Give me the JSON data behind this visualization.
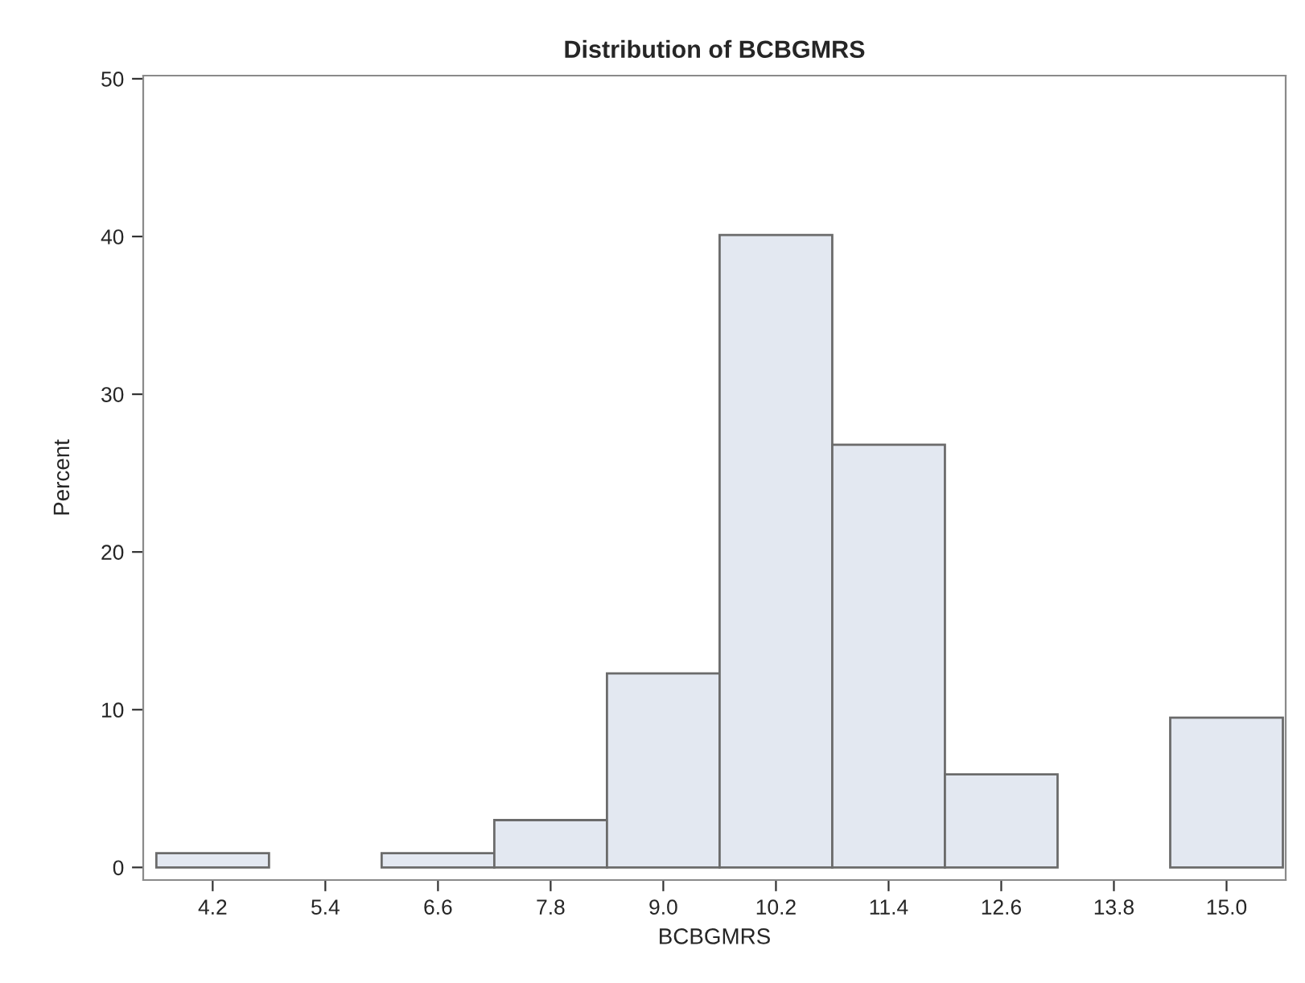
{
  "chart_data": {
    "type": "histogram",
    "title": "Distribution of BCBGMRS",
    "xlabel": "BCBGMRS",
    "ylabel": "Percent",
    "bins": [
      3.6,
      4.8,
      6.0,
      7.2,
      8.4,
      9.6,
      10.8,
      12.0,
      13.2,
      14.4,
      15.6
    ],
    "values": [
      0.9,
      0,
      0.9,
      3.0,
      12.3,
      40.1,
      26.8,
      5.9,
      0,
      9.5
    ],
    "color": "#e3e8f1",
    "xlim": [
      3.46,
      15.63
    ],
    "xticks": [
      {
        "value": 4.2,
        "label": "4.2"
      },
      {
        "value": 5.4,
        "label": "5.4"
      },
      {
        "value": 6.6,
        "label": "6.6"
      },
      {
        "value": 7.8,
        "label": "7.8"
      },
      {
        "value": 9.0,
        "label": "9.0"
      },
      {
        "value": 10.2,
        "label": "10.2"
      },
      {
        "value": 11.4,
        "label": "11.4"
      },
      {
        "value": 12.6,
        "label": "12.6"
      },
      {
        "value": 13.8,
        "label": "13.8"
      },
      {
        "value": 15.0,
        "label": "15.0"
      }
    ],
    "ylim": [
      -0.8,
      50.2
    ],
    "yticks": [
      0,
      10,
      20,
      30,
      40,
      50
    ],
    "grid": false,
    "legend": false
  }
}
